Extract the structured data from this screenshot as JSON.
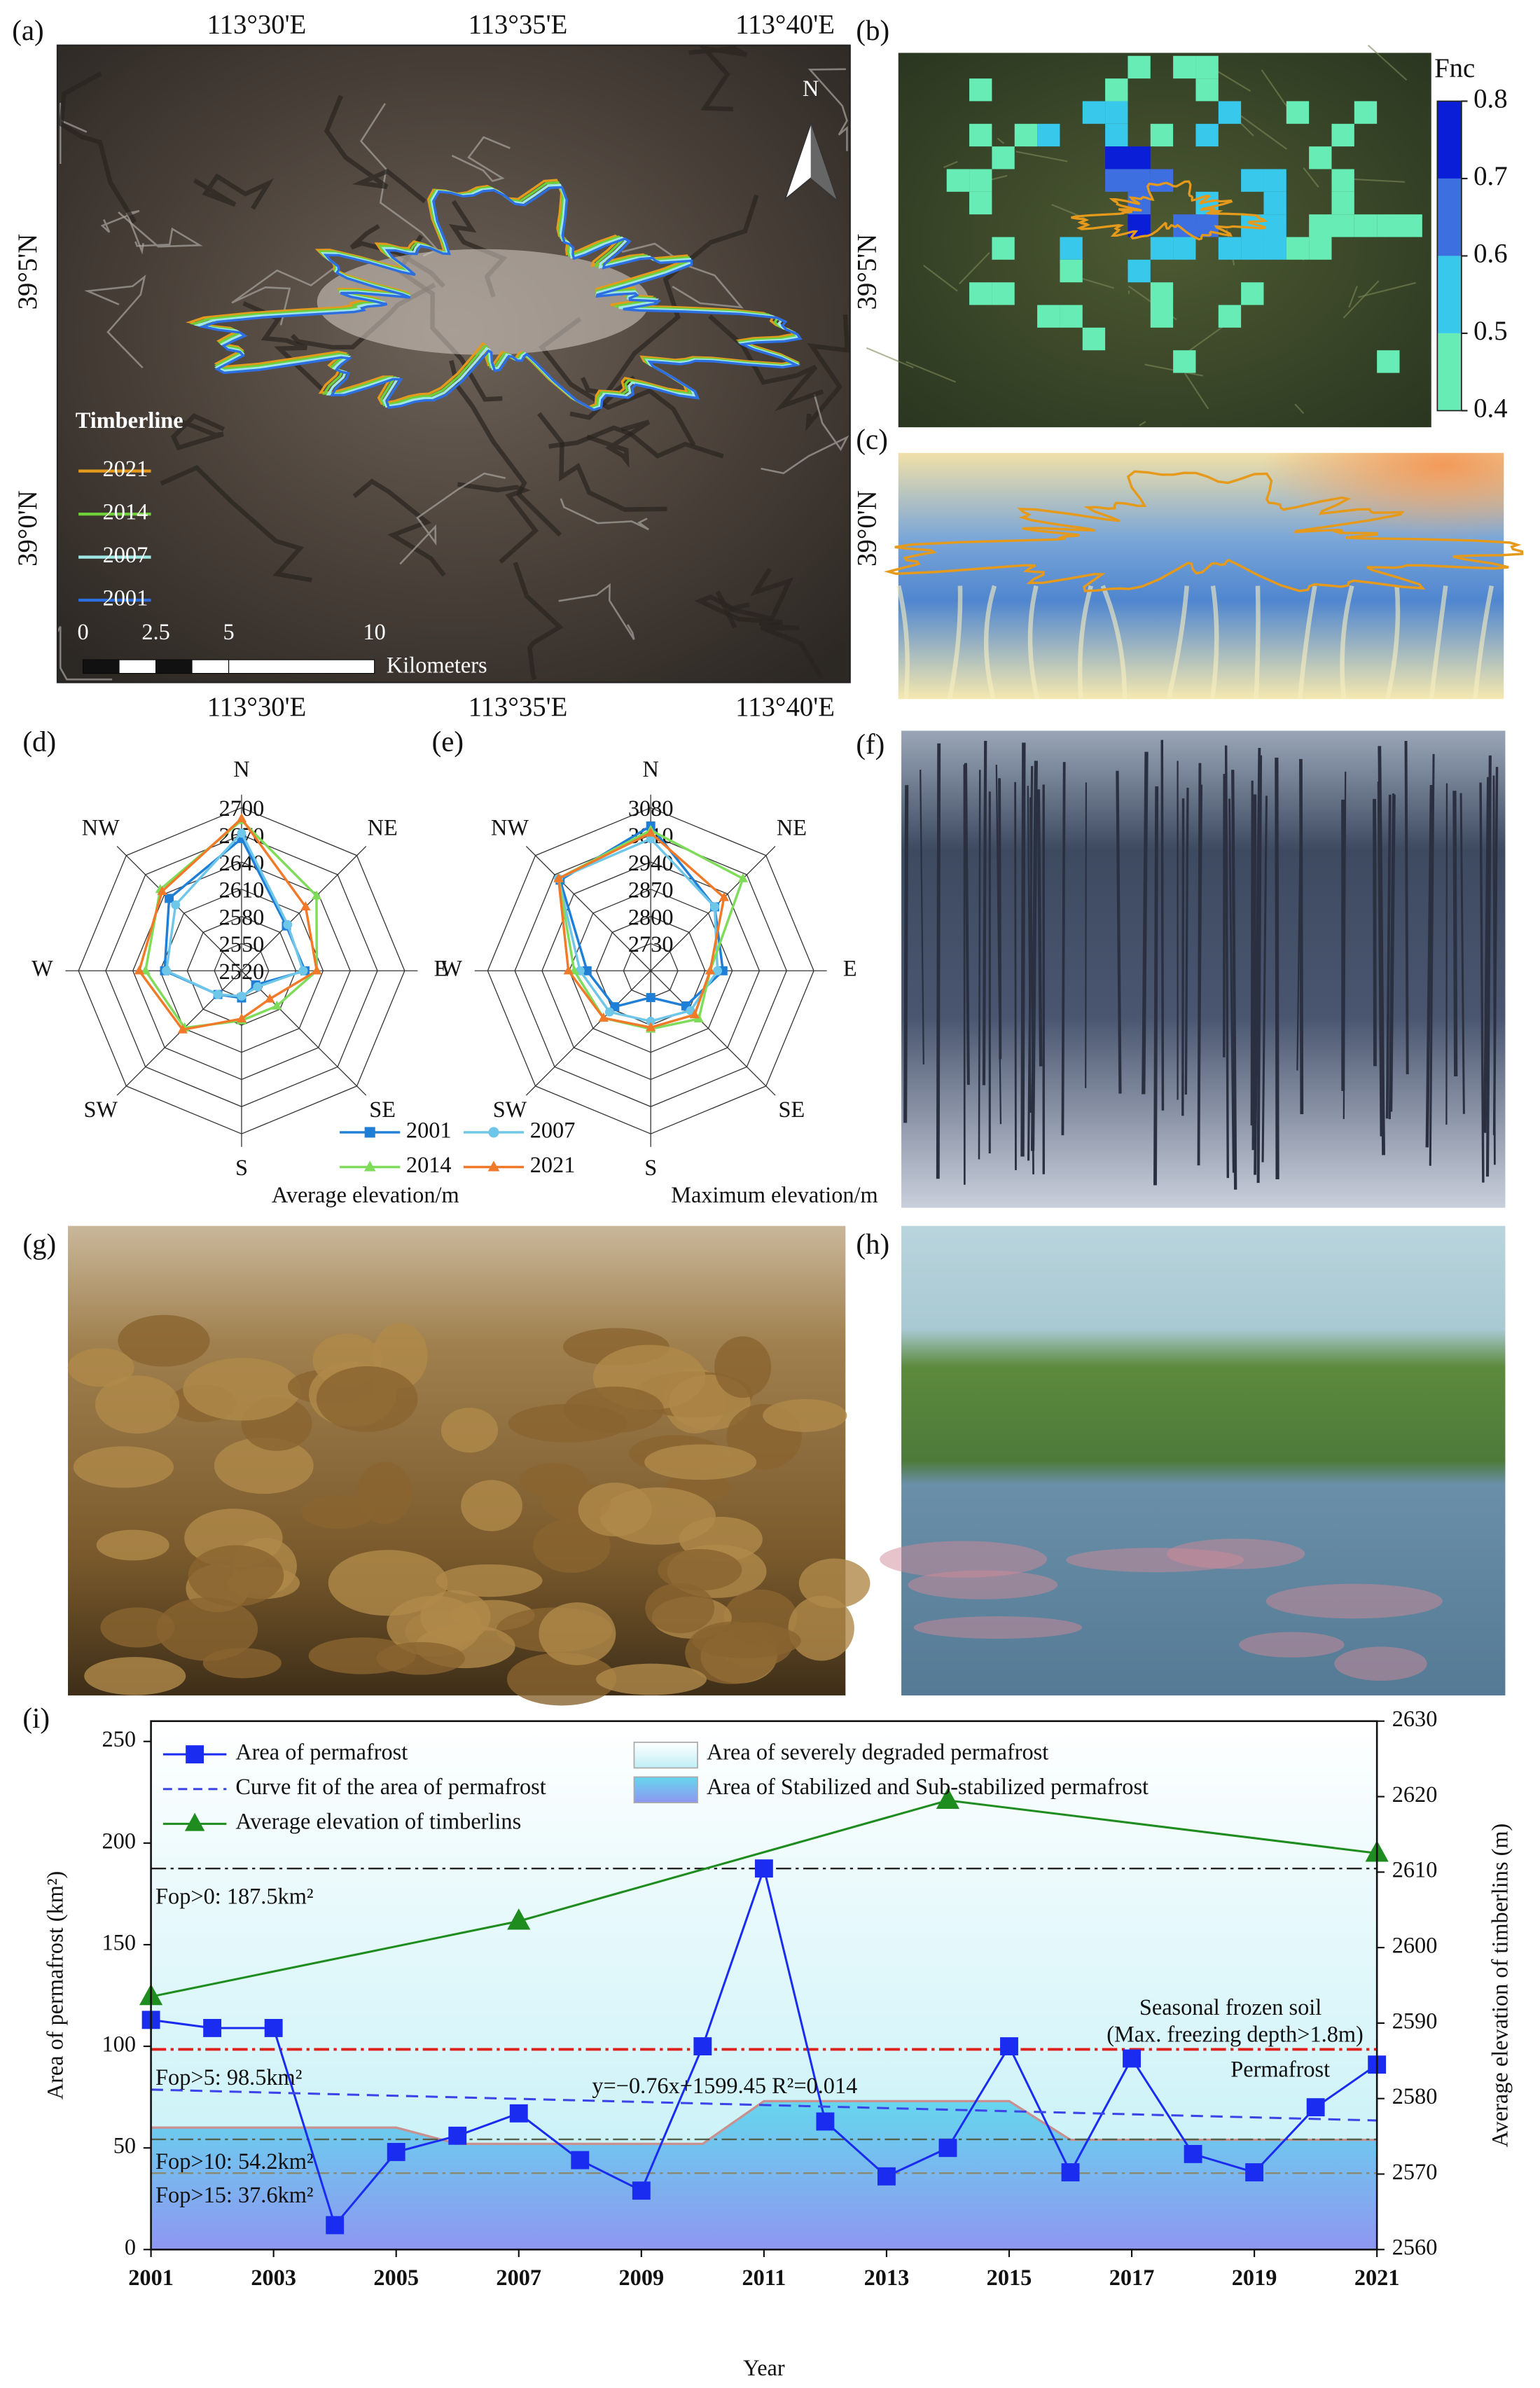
{
  "map_a": {
    "panel": "(a)",
    "lon_top": [
      "113°30'E",
      "113°35'E",
      "113°40'E"
    ],
    "lon_bottom": [
      "113°30'E",
      "113°35'E",
      "113°40'E"
    ],
    "lat": [
      "39°5'N",
      "39°0'N"
    ],
    "north": "N",
    "legend_title": "Timberline",
    "legend": [
      {
        "name": "2021",
        "color": "#e59a1c"
      },
      {
        "name": "2014",
        "color": "#6fcf3a"
      },
      {
        "name": "2007",
        "color": "#9fe6e6"
      },
      {
        "name": "2001",
        "color": "#2d6fe0"
      }
    ],
    "scale_ticks": [
      0,
      2.5,
      5,
      10
    ],
    "scale_unit": "Kilometers"
  },
  "map_b": {
    "panel": "(b)",
    "lat": [
      "39°5'N"
    ],
    "colorbar": {
      "title": "Fnc",
      "lim": [
        0.4,
        0.8
      ],
      "ticks": [
        0.8,
        0.7,
        0.6,
        0.5,
        0.4
      ],
      "colors": [
        "#0a1ed8",
        "#3d6fe0",
        "#38c8ec",
        "#66ecb4"
      ]
    }
  },
  "map_c": {
    "panel": "(c)",
    "lat": [
      "39°0'N"
    ]
  },
  "photo_f": {
    "panel": "(f)"
  },
  "photo_g": {
    "panel": "(g)"
  },
  "photo_h": {
    "panel": "(h)"
  },
  "chart_data": [
    {
      "type": "radar",
      "panel": "(d)",
      "title": "Average elevation/m",
      "categories": [
        "N",
        "NE",
        "E",
        "SE",
        "S",
        "SW",
        "W",
        "NW"
      ],
      "rlim": [
        2520,
        2700
      ],
      "rticks": [
        2520,
        2550,
        2580,
        2610,
        2640,
        2670,
        2700
      ],
      "series": [
        {
          "name": "2001",
          "color": "#1f7fd6",
          "marker": "square",
          "values": [
            2666,
            2590,
            2590,
            2542,
            2550,
            2557,
            2605,
            2633
          ]
        },
        {
          "name": "2007",
          "color": "#6ec6e8",
          "marker": "circle",
          "values": [
            2672,
            2592,
            2588,
            2545,
            2548,
            2557,
            2603,
            2623
          ]
        },
        {
          "name": "2014",
          "color": "#7fdc5a",
          "marker": "triangle",
          "values": [
            2686,
            2637,
            2603,
            2575,
            2575,
            2609,
            2626,
            2647
          ]
        },
        {
          "name": "2021",
          "color": "#f07a2a",
          "marker": "triangle",
          "values": [
            2688,
            2620,
            2603,
            2564,
            2573,
            2612,
            2633,
            2644
          ]
        }
      ]
    },
    {
      "type": "radar",
      "panel": "(e)",
      "title": "Maximum elevation/m",
      "categories": [
        "N",
        "NE",
        "E",
        "SE",
        "S",
        "SW",
        "W",
        "NW"
      ],
      "rlim": [
        2660,
        3080
      ],
      "rticks": [
        2730,
        2800,
        2870,
        2940,
        3010,
        3080
      ],
      "series": [
        {
          "color": "#1f7fd6",
          "marker": "square",
          "values": [
            3033,
            2893,
            2846,
            2788,
            2729,
            2791,
            2824,
            2990
          ]
        },
        {
          "color": "#6ec6e8",
          "marker": "circle",
          "values": [
            3000,
            2893,
            2832,
            2805,
            2790,
            2810,
            2842,
            2996
          ]
        },
        {
          "color": "#7fdc5a",
          "marker": "triangle",
          "values": [
            3022,
            2996,
            2813,
            2835,
            2810,
            2832,
            2857,
            2996
          ]
        },
        {
          "color": "#f07a2a",
          "marker": "triangle",
          "values": [
            3015,
            2927,
            2813,
            2820,
            2806,
            2832,
            2872,
            2996
          ]
        }
      ]
    },
    {
      "type": "line",
      "panel": "(i)",
      "x_label": "Year",
      "y_label": "Area of permafrost (km²)",
      "y2_label": "Average elevation of timberlins (m)",
      "xlim": [
        2001,
        2021
      ],
      "xticks": [
        2001,
        2003,
        2005,
        2007,
        2009,
        2011,
        2013,
        2015,
        2017,
        2019,
        2021
      ],
      "ylim": [
        0,
        260
      ],
      "yticks": [
        0,
        50,
        100,
        150,
        200,
        250
      ],
      "y2lim": [
        2560,
        2630
      ],
      "y2ticks": [
        2560,
        2570,
        2580,
        2590,
        2600,
        2610,
        2620,
        2630
      ],
      "series": [
        {
          "name": "Area of permafrost",
          "color": "#1a2cf0",
          "marker": "square",
          "x": [
            2001,
            2002,
            2003,
            2004,
            2005,
            2006,
            2007,
            2008,
            2009,
            2010,
            2011,
            2012,
            2013,
            2014,
            2015,
            2016,
            2017,
            2018,
            2019,
            2020,
            2021
          ],
          "values": [
            113,
            109,
            109,
            12,
            48,
            56,
            67,
            44,
            29,
            100,
            187.5,
            63,
            36,
            50,
            100,
            38,
            94,
            47,
            38,
            70,
            91
          ]
        },
        {
          "name": "Curve fit of the area of permafrost",
          "color": "#3a44e8",
          "style": "dashed",
          "x": [
            2001,
            2021
          ],
          "values": [
            78.7,
            63.5
          ]
        },
        {
          "name": "Average elevation of timberlins",
          "color": "#1e8c1e",
          "marker": "triangle",
          "axis": "y2",
          "x": [
            2001,
            2007,
            2014,
            2021
          ],
          "values": [
            2593.5,
            2603.5,
            2619.5,
            2612.5
          ]
        }
      ],
      "areas": [
        {
          "name": "Area of severely degraded permafrost",
          "color": "#c8f2f6"
        },
        {
          "name": "Area of Stabilized and Sub-stabilized permafrost",
          "color": "#5cc6ec",
          "x": [
            2001,
            2005,
            2006,
            2010,
            2011,
            2015,
            2016,
            2021
          ],
          "values": [
            60,
            60,
            52,
            52,
            73,
            73,
            54,
            54
          ]
        }
      ],
      "reference_lines": [
        {
          "label": "Fop>0: 187.5km²",
          "value": 187.5,
          "color": "#222222"
        },
        {
          "label": "Fop>5: 98.5km²",
          "value": 98.5,
          "color": "#e0201a"
        },
        {
          "label": "Fop>10: 54.2km²",
          "value": 54.2,
          "color": "#55604a"
        },
        {
          "label": "Fop>15: 37.6km²",
          "value": 37.6,
          "color": "#8a8a70"
        }
      ],
      "annotations": [
        "y=−0.76x+1599.45   R²=0.014",
        "Seasonal frozen soil",
        "(Max. freezing depth>1.8m)",
        "Permafrost"
      ]
    }
  ]
}
